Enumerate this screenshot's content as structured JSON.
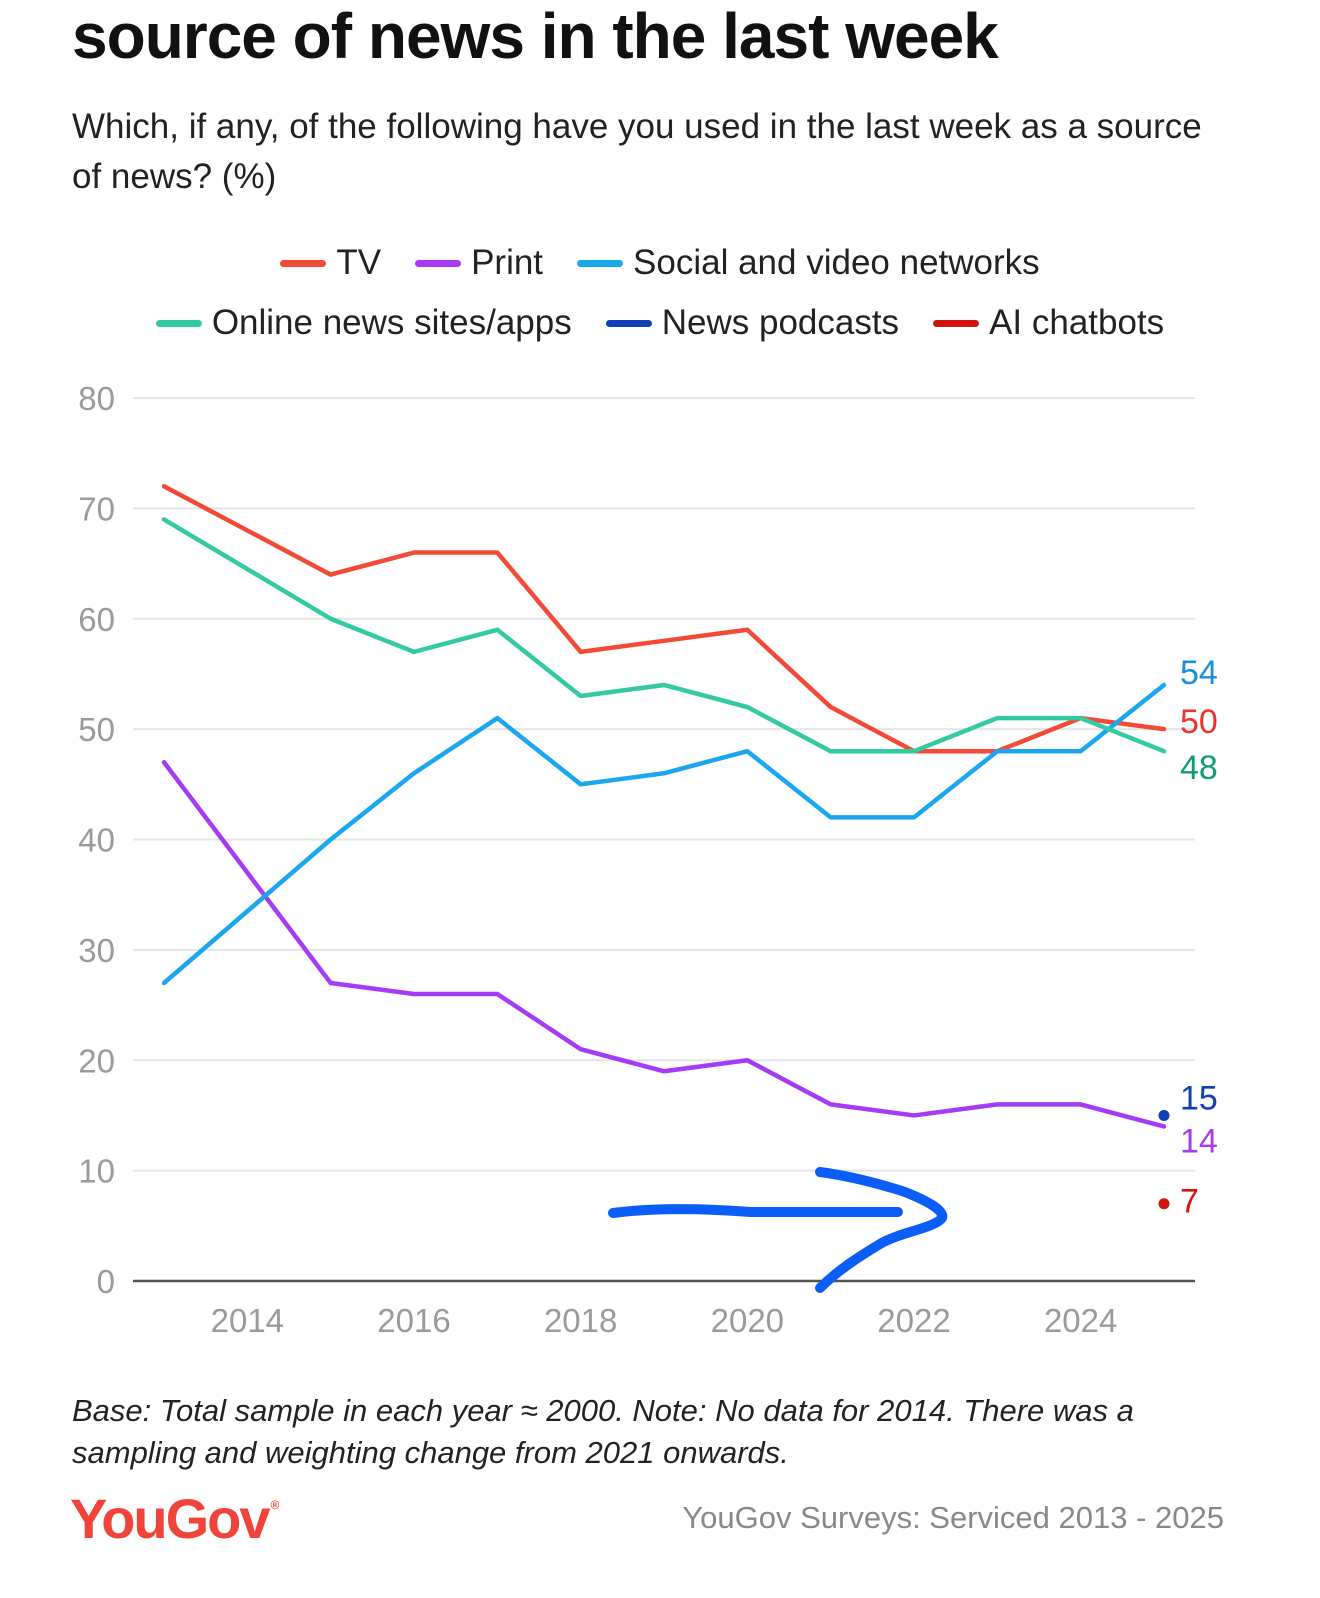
{
  "title": "source of news in the last week",
  "subtitle": "Which, if any, of the following have you used in the last week as a source of news? (%)",
  "footnote": "Base: Total sample in each year ≈ 2000. Note: No data for 2014. There was a sampling and weighting change from 2021 onwards.",
  "brand": "YouGov",
  "source": "YouGov Surveys: Serviced 2013 - 2025",
  "annotation": "hand-drawn-arrow",
  "chart_data": {
    "type": "line",
    "title": "source of news in the last week",
    "xlabel": "",
    "ylabel": "",
    "xlim": [
      2013,
      2025
    ],
    "ylim": [
      0,
      80
    ],
    "x_ticks": [
      2014,
      2016,
      2018,
      2020,
      2022,
      2024
    ],
    "y_ticks": [
      0,
      10,
      20,
      30,
      40,
      50,
      60,
      70,
      80
    ],
    "grid": true,
    "legend_position": "top",
    "series": [
      {
        "name": "TV",
        "color": "#f24a36",
        "x": [
          2013,
          2015,
          2016,
          2017,
          2018,
          2019,
          2020,
          2021,
          2022,
          2023,
          2024,
          2025
        ],
        "values": [
          72,
          64,
          66,
          66,
          57,
          58,
          59,
          52,
          48,
          48,
          51,
          50
        ],
        "end_label": "50",
        "end_label_color": "#e8352b"
      },
      {
        "name": "Print",
        "color": "#a43bf5",
        "x": [
          2013,
          2015,
          2016,
          2017,
          2018,
          2019,
          2020,
          2021,
          2022,
          2023,
          2024,
          2025
        ],
        "values": [
          47,
          27,
          26,
          26,
          21,
          19,
          20,
          16,
          15,
          16,
          16,
          14
        ],
        "end_label": "14",
        "end_label_color": "#a43bf5"
      },
      {
        "name": "Social and video networks",
        "color": "#1aa7ef",
        "x": [
          2013,
          2015,
          2016,
          2017,
          2018,
          2019,
          2020,
          2021,
          2022,
          2023,
          2024,
          2025
        ],
        "values": [
          27,
          40,
          46,
          51,
          45,
          46,
          48,
          42,
          42,
          48,
          48,
          54
        ],
        "end_label": "54",
        "end_label_color": "#1a8fd8"
      },
      {
        "name": "Online news sites/apps",
        "color": "#33c9a3",
        "x": [
          2013,
          2015,
          2016,
          2017,
          2018,
          2019,
          2020,
          2021,
          2022,
          2023,
          2024,
          2025
        ],
        "values": [
          69,
          60,
          57,
          59,
          53,
          54,
          52,
          48,
          48,
          51,
          51,
          48
        ],
        "end_label": "48",
        "end_label_color": "#129a78"
      },
      {
        "name": "News podcasts",
        "color": "#0f3fb5",
        "x": [
          2025
        ],
        "values": [
          15
        ],
        "end_label": "15",
        "end_label_color": "#0f3fb5"
      },
      {
        "name": "AI chatbots",
        "color": "#d1150e",
        "x": [
          2025
        ],
        "values": [
          7
        ],
        "end_label": "7",
        "end_label_color": "#d1150e"
      }
    ]
  }
}
